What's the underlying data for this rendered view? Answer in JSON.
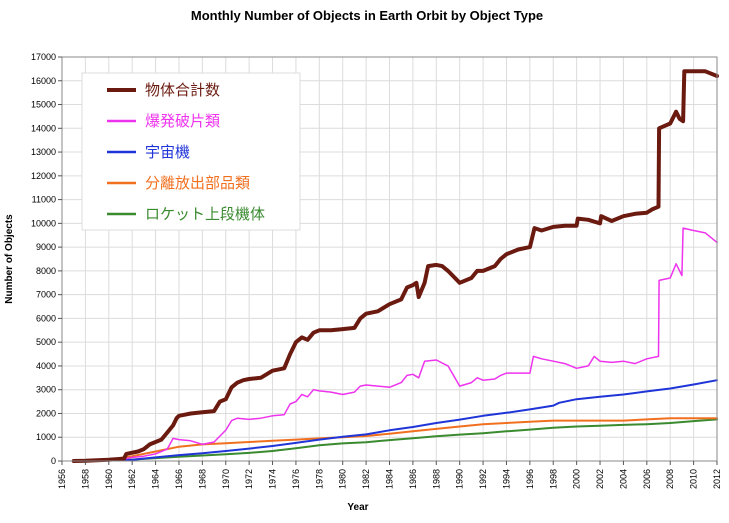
{
  "chart_data": {
    "type": "line",
    "title": "Monthly Number of Objects in Earth Orbit by Object Type",
    "xlabel": "Year",
    "ylabel": "Number of Objects",
    "xlim": [
      1956,
      2012
    ],
    "ylim": [
      0,
      17000
    ],
    "x_ticks": [
      "1956",
      "1958",
      "1960",
      "1962",
      "1964",
      "1966",
      "1968",
      "1970",
      "1972",
      "1974",
      "1976",
      "1978",
      "1980",
      "1982",
      "1984",
      "1986",
      "1988",
      "1990",
      "1992",
      "1994",
      "1996",
      "1998",
      "2000",
      "2002",
      "2004",
      "2006",
      "2008",
      "2010",
      "2012"
    ],
    "y_ticks": [
      "0",
      "1000",
      "2000",
      "3000",
      "4000",
      "5000",
      "6000",
      "7000",
      "8000",
      "9000",
      "10000",
      "11000",
      "12000",
      "13000",
      "14000",
      "15000",
      "16000",
      "17000"
    ],
    "grid": true,
    "legend_position": "top-left",
    "series": [
      {
        "name": "物体合計数",
        "color": "#6b1a10",
        "width": 4,
        "points": [
          [
            1957,
            0
          ],
          [
            1958,
            10
          ],
          [
            1960,
            50
          ],
          [
            1961.3,
            100
          ],
          [
            1961.5,
            300
          ],
          [
            1962.5,
            400
          ],
          [
            1963,
            500
          ],
          [
            1963.5,
            700
          ],
          [
            1964.5,
            900
          ],
          [
            1965,
            1200
          ],
          [
            1965.5,
            1500
          ],
          [
            1965.8,
            1800
          ],
          [
            1966,
            1900
          ],
          [
            1966.5,
            1950
          ],
          [
            1967,
            2000
          ],
          [
            1968,
            2050
          ],
          [
            1969,
            2100
          ],
          [
            1969.5,
            2500
          ],
          [
            1970,
            2600
          ],
          [
            1970.5,
            3100
          ],
          [
            1971,
            3300
          ],
          [
            1971.5,
            3400
          ],
          [
            1972,
            3450
          ],
          [
            1973,
            3500
          ],
          [
            1974,
            3800
          ],
          [
            1975,
            3900
          ],
          [
            1975.5,
            4500
          ],
          [
            1976,
            5000
          ],
          [
            1976.5,
            5200
          ],
          [
            1977,
            5100
          ],
          [
            1977.5,
            5400
          ],
          [
            1978,
            5500
          ],
          [
            1979,
            5500
          ],
          [
            1980,
            5550
          ],
          [
            1981,
            5600
          ],
          [
            1981.5,
            6000
          ],
          [
            1982,
            6200
          ],
          [
            1983,
            6300
          ],
          [
            1984,
            6600
          ],
          [
            1985,
            6800
          ],
          [
            1985.5,
            7300
          ],
          [
            1986,
            7400
          ],
          [
            1986.3,
            7500
          ],
          [
            1986.5,
            6900
          ],
          [
            1987,
            7500
          ],
          [
            1987.3,
            8200
          ],
          [
            1988,
            8250
          ],
          [
            1988.5,
            8200
          ],
          [
            1989,
            8000
          ],
          [
            1990,
            7500
          ],
          [
            1991,
            7700
          ],
          [
            1991.5,
            8000
          ],
          [
            1992,
            8000
          ],
          [
            1993,
            8200
          ],
          [
            1993.5,
            8500
          ],
          [
            1994,
            8700
          ],
          [
            1995,
            8900
          ],
          [
            1996,
            9000
          ],
          [
            1996.4,
            9800
          ],
          [
            1997,
            9700
          ],
          [
            1998,
            9850
          ],
          [
            1999,
            9900
          ],
          [
            2000,
            9900
          ],
          [
            2000.1,
            10200
          ],
          [
            2001,
            10150
          ],
          [
            2002,
            10000
          ],
          [
            2002.1,
            10300
          ],
          [
            2003,
            10100
          ],
          [
            2004,
            10300
          ],
          [
            2005,
            10400
          ],
          [
            2006,
            10450
          ],
          [
            2006.5,
            10600
          ],
          [
            2007,
            10700
          ],
          [
            2007.05,
            14000
          ],
          [
            2008,
            14200
          ],
          [
            2008.5,
            14700
          ],
          [
            2008.8,
            14400
          ],
          [
            2009.1,
            14300
          ],
          [
            2009.2,
            16400
          ],
          [
            2010,
            16400
          ],
          [
            2011,
            16400
          ],
          [
            2012,
            16200
          ]
        ]
      },
      {
        "name": "爆発破片類",
        "color": "#ee33ee",
        "width": 1.5,
        "points": [
          [
            1961.5,
            100
          ],
          [
            1962,
            150
          ],
          [
            1963,
            200
          ],
          [
            1964,
            300
          ],
          [
            1965,
            500
          ],
          [
            1965.5,
            950
          ],
          [
            1966,
            900
          ],
          [
            1967,
            850
          ],
          [
            1968,
            700
          ],
          [
            1969,
            800
          ],
          [
            1970,
            1300
          ],
          [
            1970.5,
            1700
          ],
          [
            1971,
            1800
          ],
          [
            1972,
            1750
          ],
          [
            1973,
            1800
          ],
          [
            1974,
            1900
          ],
          [
            1975,
            1950
          ],
          [
            1975.5,
            2400
          ],
          [
            1976,
            2500
          ],
          [
            1976.5,
            2800
          ],
          [
            1977,
            2700
          ],
          [
            1977.5,
            3000
          ],
          [
            1978,
            2950
          ],
          [
            1979,
            2900
          ],
          [
            1980,
            2800
          ],
          [
            1981,
            2900
          ],
          [
            1981.5,
            3150
          ],
          [
            1982,
            3200
          ],
          [
            1983,
            3150
          ],
          [
            1984,
            3100
          ],
          [
            1985,
            3300
          ],
          [
            1985.5,
            3600
          ],
          [
            1986,
            3650
          ],
          [
            1986.5,
            3500
          ],
          [
            1987,
            4200
          ],
          [
            1988,
            4250
          ],
          [
            1989,
            4000
          ],
          [
            1990,
            3150
          ],
          [
            1991,
            3300
          ],
          [
            1991.5,
            3500
          ],
          [
            1992,
            3400
          ],
          [
            1993,
            3450
          ],
          [
            1993.5,
            3600
          ],
          [
            1994,
            3700
          ],
          [
            1995,
            3700
          ],
          [
            1996,
            3700
          ],
          [
            1996.3,
            4400
          ],
          [
            1997,
            4300
          ],
          [
            1998,
            4200
          ],
          [
            1999,
            4100
          ],
          [
            2000,
            3900
          ],
          [
            2001,
            4000
          ],
          [
            2001.5,
            4400
          ],
          [
            2002,
            4200
          ],
          [
            2003,
            4150
          ],
          [
            2004,
            4200
          ],
          [
            2005,
            4100
          ],
          [
            2006,
            4300
          ],
          [
            2007,
            4400
          ],
          [
            2007.05,
            7600
          ],
          [
            2008,
            7700
          ],
          [
            2008.5,
            8300
          ],
          [
            2009,
            7800
          ],
          [
            2009.1,
            9800
          ],
          [
            2010,
            9700
          ],
          [
            2011,
            9600
          ],
          [
            2012,
            9200
          ]
        ]
      },
      {
        "name": "宇宙機",
        "color": "#1f35d8",
        "width": 2,
        "points": [
          [
            1957,
            0
          ],
          [
            1960,
            20
          ],
          [
            1962,
            50
          ],
          [
            1964,
            150
          ],
          [
            1966,
            250
          ],
          [
            1968,
            330
          ],
          [
            1970,
            420
          ],
          [
            1972,
            520
          ],
          [
            1974,
            630
          ],
          [
            1976,
            760
          ],
          [
            1978,
            900
          ],
          [
            1980,
            1020
          ],
          [
            1982,
            1120
          ],
          [
            1984,
            1290
          ],
          [
            1986,
            1430
          ],
          [
            1988,
            1600
          ],
          [
            1990,
            1740
          ],
          [
            1992,
            1900
          ],
          [
            1994,
            2030
          ],
          [
            1996,
            2170
          ],
          [
            1998,
            2330
          ],
          [
            1998.5,
            2450
          ],
          [
            2000,
            2600
          ],
          [
            2002,
            2700
          ],
          [
            2004,
            2800
          ],
          [
            2006,
            2930
          ],
          [
            2008,
            3050
          ],
          [
            2010,
            3220
          ],
          [
            2012,
            3400
          ]
        ]
      },
      {
        "name": "分離放出部品類",
        "color": "#f07020",
        "width": 2,
        "points": [
          [
            1957,
            0
          ],
          [
            1960,
            50
          ],
          [
            1962,
            200
          ],
          [
            1964,
            400
          ],
          [
            1966,
            600
          ],
          [
            1968,
            700
          ],
          [
            1970,
            750
          ],
          [
            1972,
            800
          ],
          [
            1974,
            850
          ],
          [
            1976,
            900
          ],
          [
            1978,
            950
          ],
          [
            1980,
            1000
          ],
          [
            1982,
            1050
          ],
          [
            1984,
            1150
          ],
          [
            1986,
            1250
          ],
          [
            1988,
            1350
          ],
          [
            1990,
            1450
          ],
          [
            1992,
            1550
          ],
          [
            1994,
            1600
          ],
          [
            1996,
            1650
          ],
          [
            1998,
            1700
          ],
          [
            2000,
            1700
          ],
          [
            2002,
            1700
          ],
          [
            2004,
            1700
          ],
          [
            2006,
            1750
          ],
          [
            2008,
            1800
          ],
          [
            2010,
            1800
          ],
          [
            2012,
            1800
          ]
        ]
      },
      {
        "name": "ロケット上段機体",
        "color": "#3a8a2f",
        "width": 2,
        "points": [
          [
            1957,
            0
          ],
          [
            1960,
            20
          ],
          [
            1962,
            60
          ],
          [
            1964,
            120
          ],
          [
            1966,
            180
          ],
          [
            1968,
            230
          ],
          [
            1970,
            280
          ],
          [
            1972,
            340
          ],
          [
            1974,
            420
          ],
          [
            1976,
            540
          ],
          [
            1978,
            660
          ],
          [
            1980,
            740
          ],
          [
            1982,
            790
          ],
          [
            1984,
            880
          ],
          [
            1986,
            960
          ],
          [
            1988,
            1040
          ],
          [
            1990,
            1110
          ],
          [
            1992,
            1170
          ],
          [
            1994,
            1250
          ],
          [
            1996,
            1320
          ],
          [
            1998,
            1400
          ],
          [
            2000,
            1450
          ],
          [
            2002,
            1480
          ],
          [
            2004,
            1520
          ],
          [
            2006,
            1550
          ],
          [
            2008,
            1600
          ],
          [
            2010,
            1680
          ],
          [
            2012,
            1750
          ]
        ]
      }
    ]
  }
}
